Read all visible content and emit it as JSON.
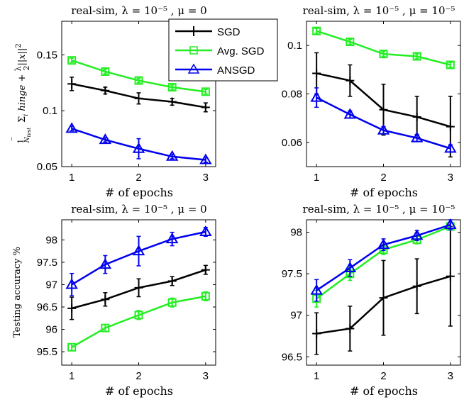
{
  "chart_data": [
    {
      "type": "line",
      "title": "real-sim, λ = 10⁻⁵ , μ = 0",
      "xlabel": "# of epochs",
      "ylabel": "1/N_test Σ_i hinge + λ/2 ||x||²",
      "x": [
        1,
        1.5,
        2,
        2.5,
        3
      ],
      "xticks": [
        1,
        2,
        3
      ],
      "xlim": [
        0.85,
        3.15
      ],
      "ylim": [
        0.05,
        0.18
      ],
      "yticks": [
        0.05,
        0.1,
        0.15
      ],
      "yticklabels": [
        "0.05",
        "0.1",
        "0.15"
      ],
      "series": [
        {
          "name": "SGD",
          "color": "#000000",
          "marker": "plus",
          "values": [
            0.124,
            0.118,
            0.111,
            0.108,
            0.103
          ],
          "err": [
            0.006,
            0.003,
            0.005,
            0.003,
            0.004
          ]
        },
        {
          "name": "Avg. SGD",
          "color": "#22ee22",
          "marker": "square",
          "values": [
            0.145,
            0.135,
            0.127,
            0.121,
            0.117
          ],
          "err": [
            0.002,
            0.002,
            0.002,
            0.002,
            0.002
          ]
        },
        {
          "name": "ANSGD",
          "color": "#0000ee",
          "marker": "triangle",
          "values": [
            0.084,
            0.074,
            0.066,
            0.059,
            0.056
          ],
          "err": [
            0.002,
            0.002,
            0.009,
            0.002,
            0.002
          ]
        }
      ],
      "legend": {
        "placement": "top-right",
        "entries": [
          "SGD",
          "Avg. SGD",
          "ANSGD"
        ]
      }
    },
    {
      "type": "line",
      "title": "real-sim, λ = 10⁻⁵ , μ = 10⁻⁵",
      "xlabel": "# of epochs",
      "ylabel": "",
      "x": [
        1,
        1.5,
        2,
        2.5,
        3
      ],
      "xticks": [
        1,
        2,
        3
      ],
      "xlim": [
        0.85,
        3.15
      ],
      "ylim": [
        0.05,
        0.11
      ],
      "yticks": [
        0.06,
        0.08,
        0.1
      ],
      "yticklabels": [
        "0.06",
        "0.08",
        "0.1"
      ],
      "series": [
        {
          "name": "SGD",
          "color": "#000000",
          "marker": "plus",
          "values": [
            0.0885,
            0.0855,
            0.0735,
            0.0705,
            0.0665
          ],
          "err": [
            0.0085,
            0.0065,
            0.0105,
            0.0085,
            0.0125
          ]
        },
        {
          "name": "Avg. SGD",
          "color": "#22ee22",
          "marker": "square",
          "values": [
            0.106,
            0.1015,
            0.0965,
            0.0955,
            0.092
          ],
          "err": [
            0.001,
            0.001,
            0.001,
            0.001,
            0.001
          ]
        },
        {
          "name": "ANSGD",
          "color": "#0000ee",
          "marker": "triangle",
          "values": [
            0.0785,
            0.0715,
            0.065,
            0.0618,
            0.0575
          ],
          "err": [
            0.004,
            0.0015,
            0.0015,
            0.0015,
            0.0015
          ]
        }
      ]
    },
    {
      "type": "line",
      "title": "real-sim, λ = 10⁻⁵ , μ = 0",
      "xlabel": "# of epochs",
      "ylabel": "Testing accuracy %",
      "x": [
        1,
        1.5,
        2,
        2.5,
        3
      ],
      "xticks": [
        1,
        2,
        3
      ],
      "xlim": [
        0.85,
        3.15
      ],
      "ylim": [
        95.2,
        98.45
      ],
      "yticks": [
        95.5,
        96,
        96.5,
        97,
        97.5,
        98
      ],
      "yticklabels": [
        "95.5",
        "96",
        "96.5",
        "97",
        "97.5",
        "98"
      ],
      "series": [
        {
          "name": "SGD",
          "color": "#000000",
          "marker": "plus",
          "values": [
            96.47,
            96.67,
            96.93,
            97.08,
            97.33
          ],
          "err": [
            0.25,
            0.15,
            0.2,
            0.1,
            0.1
          ]
        },
        {
          "name": "Avg. SGD",
          "color": "#22ee22",
          "marker": "square",
          "values": [
            95.6,
            96.03,
            96.32,
            96.6,
            96.74
          ],
          "err": [
            0.08,
            0.08,
            0.1,
            0.1,
            0.1
          ]
        },
        {
          "name": "ANSGD",
          "color": "#0000ee",
          "marker": "triangle",
          "values": [
            97.0,
            97.45,
            97.75,
            98.02,
            98.18
          ],
          "err": [
            0.25,
            0.2,
            0.33,
            0.15,
            0.1
          ]
        }
      ]
    },
    {
      "type": "line",
      "title": "real-sim, λ = 10⁻⁵ , μ = 10⁻⁵",
      "xlabel": "# of epochs",
      "ylabel": "",
      "x": [
        1,
        1.5,
        2,
        2.5,
        3
      ],
      "xticks": [
        1,
        2,
        3
      ],
      "xlim": [
        0.85,
        3.15
      ],
      "ylim": [
        96.4,
        98.15
      ],
      "yticks": [
        96.5,
        97,
        97.5,
        98
      ],
      "yticklabels": [
        "96.5",
        "97",
        "97.5",
        "98"
      ],
      "series": [
        {
          "name": "SGD",
          "color": "#000000",
          "marker": "plus",
          "values": [
            96.78,
            96.84,
            97.21,
            97.35,
            97.47
          ],
          "err": [
            0.25,
            0.27,
            0.45,
            0.33,
            0.6
          ]
        },
        {
          "name": "Avg. SGD",
          "color": "#22ee22",
          "marker": "square",
          "values": [
            97.2,
            97.5,
            97.79,
            97.91,
            98.07
          ],
          "err": [
            0.1,
            0.08,
            0.06,
            0.05,
            0.04
          ]
        },
        {
          "name": "ANSGD",
          "color": "#0000ee",
          "marker": "triangle",
          "values": [
            97.3,
            97.57,
            97.85,
            97.96,
            98.09
          ],
          "err": [
            0.13,
            0.1,
            0.07,
            0.06,
            0.06
          ]
        }
      ]
    }
  ]
}
